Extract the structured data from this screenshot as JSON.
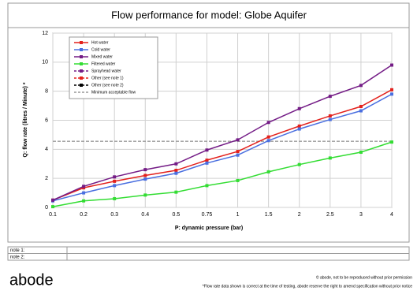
{
  "chart_data": {
    "type": "line",
    "title": "Flow performance for model: Globe Aquifer",
    "x_label": "P: dynamic pressure (bar)",
    "y_label": "Q: flow rate (litres / Minute) *",
    "categories": [
      "0.1",
      "0.2",
      "0.3",
      "0.4",
      "0.5",
      "0.75",
      "1",
      "1.5",
      "2",
      "2.5",
      "3",
      "4"
    ],
    "ylim": [
      0,
      12
    ],
    "yticks": [
      0,
      2,
      4,
      6,
      8,
      10,
      12
    ],
    "grid": true,
    "series": [
      {
        "name": "Hot water",
        "color": "#e3211c",
        "values": [
          0.5,
          1.35,
          1.8,
          2.2,
          2.55,
          3.25,
          3.85,
          4.85,
          5.6,
          6.3,
          6.95,
          8.1
        ]
      },
      {
        "name": "Cold water",
        "color": "#4a6fe0",
        "values": [
          0.45,
          1.0,
          1.5,
          1.95,
          2.35,
          3.05,
          3.6,
          4.6,
          5.4,
          6.05,
          6.65,
          7.8
        ]
      },
      {
        "name": "Mixed water",
        "color": "#741c86",
        "values": [
          0.5,
          1.45,
          2.1,
          2.6,
          3.0,
          3.95,
          4.65,
          5.85,
          6.8,
          7.65,
          8.4,
          9.8
        ]
      },
      {
        "name": "Filtered water",
        "color": "#33dd33",
        "values": [
          0.05,
          0.45,
          0.6,
          0.85,
          1.05,
          1.5,
          1.85,
          2.45,
          2.95,
          3.4,
          3.8,
          4.5
        ]
      },
      {
        "name": "Sprayhead water",
        "color": "#741c86",
        "dash": true,
        "values": [
          null,
          null,
          null,
          null,
          null,
          null,
          null,
          null,
          null,
          null,
          null,
          null
        ]
      },
      {
        "name": "Other (see note 1)",
        "color": "#e3211c",
        "dash": true,
        "values": [
          null,
          null,
          null,
          null,
          null,
          null,
          null,
          null,
          null,
          null,
          null,
          null
        ]
      },
      {
        "name": "Other (see note 2)",
        "color": "#000000",
        "dash": true,
        "values": [
          null,
          null,
          null,
          null,
          null,
          null,
          null,
          null,
          null,
          null,
          null,
          null
        ]
      }
    ],
    "threshold": {
      "name": "Minimum acceptable flow",
      "value": 4.55,
      "color": "#999999"
    }
  },
  "notes": [
    "note 1:",
    "note 2:"
  ],
  "footer": {
    "logo": "abode",
    "copyright": "© abode, not to be reproduced without prior permission",
    "disclaimer": "*Flow rate data shown is correct at the time of testing, abode reserve the right to amend specification without prior notice"
  }
}
